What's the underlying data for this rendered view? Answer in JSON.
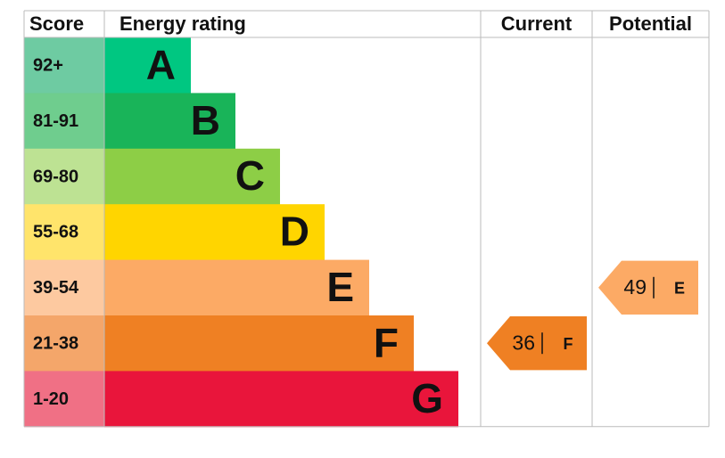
{
  "chart_data": {
    "type": "epc",
    "headers": [
      "Score",
      "Energy rating",
      "Current",
      "Potential"
    ],
    "bands": [
      {
        "score": "92+",
        "letter": "A",
        "color": "#00c781",
        "score_color": "#6ecba2"
      },
      {
        "score": "81-91",
        "letter": "B",
        "color": "#19b459",
        "score_color": "#6fcd8e"
      },
      {
        "score": "69-80",
        "letter": "C",
        "color": "#8dce46",
        "score_color": "#bde293"
      },
      {
        "score": "55-68",
        "letter": "D",
        "color": "#ffd500",
        "score_color": "#ffe46b"
      },
      {
        "score": "39-54",
        "letter": "E",
        "color": "#fcaa65",
        "score_color": "#fdc9a0"
      },
      {
        "score": "21-38",
        "letter": "F",
        "color": "#ef8023",
        "score_color": "#f4a66a"
      },
      {
        "score": "1-20",
        "letter": "G",
        "color": "#e9153b",
        "score_color": "#f07085"
      }
    ],
    "current": {
      "value": 36,
      "letter": "F"
    },
    "potential": {
      "value": 49,
      "letter": "E"
    }
  }
}
